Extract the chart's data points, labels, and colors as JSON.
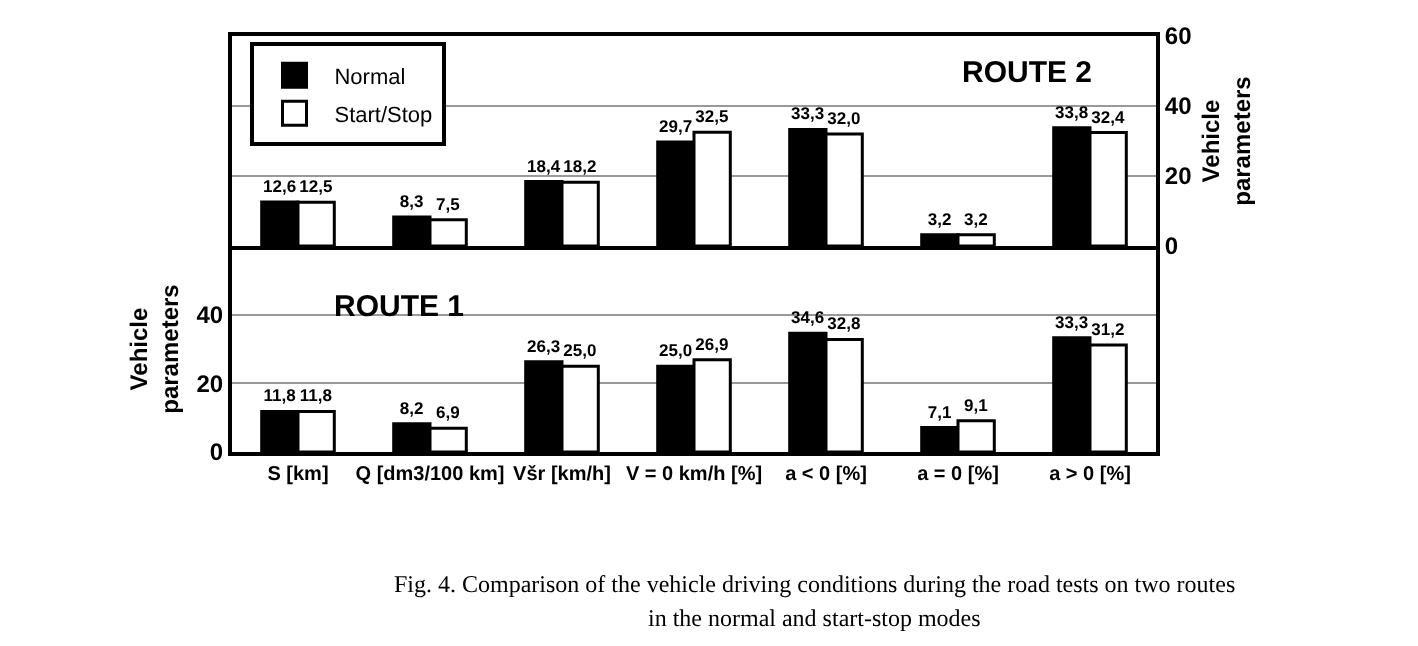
{
  "chart_data": [
    {
      "type": "bar",
      "ylabel": "Vehicle parameters",
      "categories": [
        null,
        null,
        null,
        null,
        null,
        null,
        null
      ],
      "series": [
        {
          "name": "Normal",
          "color": "#000000",
          "values": [
            12.6,
            8.3,
            18.4,
            29.7,
            33.3,
            3.2,
            33.8
          ],
          "value_labels": [
            "12,6",
            "8,3",
            "18,4",
            "29,7",
            "33,3",
            "3,2",
            "33,8"
          ]
        },
        {
          "name": "Start/Stop",
          "color": "#ffffff",
          "values": [
            12.5,
            7.5,
            18.2,
            32.5,
            32.0,
            3.2,
            32.4
          ],
          "value_labels": [
            "12,5",
            "7,5",
            "18,2",
            "32,5",
            "32,0",
            "3,2",
            "32,4"
          ]
        }
      ],
      "ylim": [
        0,
        60
      ],
      "yticks": [
        0,
        20,
        40,
        60
      ],
      "grid": "y",
      "legend": "top left",
      "tick_labels": "y",
      "annotations": [
        "ROUTE 2"
      ]
    },
    {
      "type": "bar",
      "ylabel": "Vehicle parameters",
      "categories": [
        "S [km]",
        "Q [dm3/100 km]",
        "Všr [km/h]",
        "V = 0 km/h [%]",
        "a < 0 [%]",
        "a = 0 [%]",
        "a > 0 [%]"
      ],
      "series": [
        {
          "color": "#000000",
          "values": [
            11.8,
            8.2,
            26.3,
            25.0,
            34.6,
            7.1,
            33.3
          ],
          "value_labels": [
            "11,8",
            "8,2",
            "26,3",
            "25,0",
            "34,6",
            "7,1",
            "33,3"
          ]
        },
        {
          "color": "#ffffff",
          "values": [
            11.8,
            6.9,
            25.0,
            26.9,
            32.8,
            9.1,
            31.2
          ],
          "value_labels": [
            "11,8",
            "6,9",
            "25,0",
            "26,9",
            "32,8",
            "9,1",
            "31,2"
          ]
        }
      ],
      "ylim": [
        0,
        60
      ],
      "yticks": [
        0,
        20,
        40
      ],
      "grid": "y",
      "legend": false,
      "annotations": [
        "ROUTE 1",
        "Fig. 4. Comparison of the vehicle driving conditions during the road tests on two routes",
        "in the normal and start-stop modes"
      ]
    }
  ]
}
